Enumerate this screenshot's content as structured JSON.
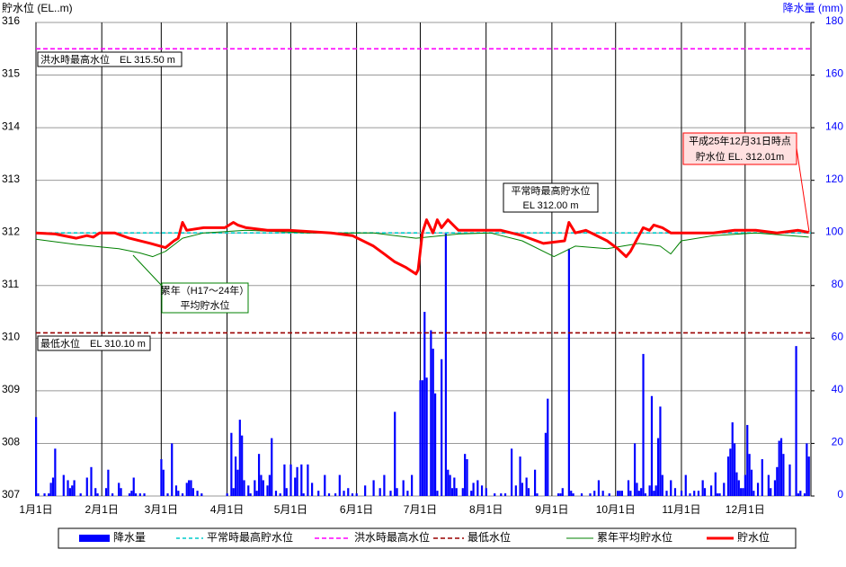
{
  "chart_data": {
    "type": "bar_line",
    "y_label": "貯水位 (EL..m)",
    "y2_label": "降水量 (mm)",
    "xlim": [
      1,
      366
    ],
    "xticks": [
      {
        "value": 1,
        "label": "1月1日"
      },
      {
        "value": 32,
        "label": "2月1日"
      },
      {
        "value": 60,
        "label": "3月1日"
      },
      {
        "value": 91,
        "label": "4月1日"
      },
      {
        "value": 121,
        "label": "5月1日"
      },
      {
        "value": 152,
        "label": "6月1日"
      },
      {
        "value": 182,
        "label": "7月1日"
      },
      {
        "value": 213,
        "label": "8月1日"
      },
      {
        "value": 244,
        "label": "9月1日"
      },
      {
        "value": 274,
        "label": "10月1日"
      },
      {
        "value": 305,
        "label": "11月1日"
      },
      {
        "value": 335,
        "label": "12月1日"
      }
    ],
    "ylim": [
      307,
      316
    ],
    "yticks": [
      307,
      308,
      309,
      310,
      311,
      312,
      313,
      314,
      315,
      316
    ],
    "y2lim": [
      0,
      180
    ],
    "y2ticks": [
      0,
      20,
      40,
      60,
      80,
      100,
      120,
      140,
      160,
      180
    ],
    "grid": true,
    "series": [
      {
        "name": "降水量",
        "type": "bar",
        "axis": "y2",
        "color": "#0000ff",
        "x": [
          1,
          2,
          5,
          7,
          8,
          9,
          10,
          14,
          16,
          17,
          18,
          19,
          22,
          25,
          27,
          29,
          30,
          34,
          35,
          37,
          40,
          41,
          45,
          46,
          47,
          48,
          50,
          52,
          60,
          61,
          63,
          65,
          67,
          68,
          70,
          72,
          73,
          74,
          75,
          77,
          79,
          91,
          93,
          94,
          95,
          96,
          97,
          98,
          99,
          101,
          102,
          104,
          105,
          106,
          107,
          108,
          110,
          111,
          112,
          114,
          116,
          118,
          119,
          121,
          123,
          124,
          126,
          127,
          129,
          131,
          134,
          137,
          139,
          142,
          144,
          146,
          148,
          150,
          152,
          156,
          160,
          163,
          165,
          168,
          170,
          171,
          174,
          176,
          178,
          182,
          183,
          184,
          185,
          187,
          188,
          189,
          190,
          192,
          194,
          195,
          196,
          197,
          198,
          199,
          202,
          203,
          204,
          206,
          207,
          209,
          211,
          213,
          217,
          220,
          222,
          225,
          227,
          229,
          230,
          232,
          233,
          236,
          237,
          241,
          242,
          247,
          248,
          249,
          252,
          253,
          254,
          258,
          262,
          264,
          266,
          268,
          271,
          275,
          276,
          277,
          280,
          281,
          283,
          284,
          285,
          286,
          287,
          288,
          290,
          291,
          292,
          293,
          294,
          295,
          296,
          298,
          300,
          302,
          305,
          307,
          309,
          311,
          313,
          315,
          316,
          319,
          321,
          322,
          323,
          325,
          327,
          328,
          329,
          330,
          331,
          332,
          333,
          334,
          335,
          336,
          337,
          338,
          339,
          341,
          343,
          346,
          347,
          349,
          350,
          351,
          352,
          353,
          356,
          359,
          360,
          361,
          363,
          364,
          365
        ],
        "values": [
          30,
          1,
          1,
          1,
          5,
          7,
          18,
          8,
          6,
          3,
          4,
          6,
          1,
          7,
          11,
          3,
          1,
          3,
          10,
          1,
          5,
          3,
          1,
          2,
          7,
          1,
          1,
          1,
          14,
          10,
          1,
          20,
          4,
          2,
          1,
          5,
          6,
          6,
          3,
          2,
          1,
          1,
          24,
          3,
          15,
          10,
          29,
          23,
          6,
          4,
          1,
          6,
          2,
          16,
          8,
          6,
          4,
          8,
          22,
          2,
          1,
          12,
          3,
          12,
          7,
          11,
          12,
          1,
          12,
          5,
          2,
          8,
          1,
          1,
          8,
          2,
          3,
          1,
          1,
          4,
          6,
          3,
          8,
          2,
          32,
          3,
          6,
          2,
          8,
          44,
          44,
          70,
          45,
          63,
          56,
          39,
          2,
          52,
          100,
          10,
          8,
          3,
          7,
          3,
          3,
          16,
          14,
          2,
          5,
          6,
          4,
          3,
          1,
          1,
          1,
          18,
          4,
          15,
          5,
          7,
          3,
          10,
          1,
          24,
          37,
          1,
          1,
          3,
          94,
          2,
          1,
          1,
          1,
          2,
          6,
          2,
          1,
          2,
          2,
          2,
          6,
          2,
          20,
          5,
          2,
          3,
          54,
          1,
          4,
          38,
          2,
          4,
          22,
          34,
          8,
          2,
          6,
          3,
          2,
          8,
          1,
          2,
          2,
          6,
          3,
          4,
          9,
          1,
          1,
          5,
          15,
          18,
          28,
          20,
          9,
          6,
          3,
          3,
          8,
          27,
          16,
          10,
          2,
          5,
          14,
          8,
          3,
          6,
          11,
          21,
          22,
          16,
          12,
          57,
          1,
          2,
          1,
          20,
          15
        ]
      },
      {
        "name": "平常時最高貯水位",
        "type": "hline",
        "value": 312,
        "color": "#00cccc",
        "dash": "4 3",
        "label": [
          "平常時最高貯水位",
          "EL 312.00 m"
        ]
      },
      {
        "name": "洪水時最高水位",
        "type": "hline",
        "value": 315.5,
        "color": "#ff00ff",
        "dash": "5 3",
        "label": [
          "洪水時最高水位　EL 315.50 m"
        ]
      },
      {
        "name": "最低水位",
        "type": "hline",
        "value": 310.1,
        "color": "#990000",
        "dash": "5 3",
        "label": [
          "最低水位　EL 310.10 m"
        ]
      },
      {
        "name": "累年平均貯水位",
        "type": "line",
        "color": "#008000",
        "width": 1,
        "x": [
          1,
          20,
          40,
          50,
          56,
          62,
          70,
          80,
          100,
          130,
          160,
          180,
          200,
          215,
          230,
          245,
          255,
          270,
          285,
          295,
          300,
          305,
          320,
          340,
          365
        ],
        "values": [
          311.88,
          311.78,
          311.7,
          311.62,
          311.55,
          311.65,
          311.9,
          312.0,
          312.05,
          312.0,
          312.0,
          311.9,
          311.98,
          312.0,
          311.85,
          311.55,
          311.75,
          311.7,
          311.8,
          311.75,
          311.6,
          311.85,
          311.95,
          312.0,
          311.92
        ],
        "label": [
          "累年（H17～24年）",
          "平均貯水位"
        ]
      },
      {
        "name": "貯水位",
        "type": "line",
        "color": "#ff0000",
        "width": 3,
        "x": [
          1,
          10,
          20,
          25,
          28,
          31,
          38,
          45,
          55,
          62,
          66,
          68,
          70,
          72,
          80,
          90,
          94,
          96,
          100,
          110,
          120,
          140,
          150,
          160,
          165,
          170,
          175,
          180,
          181,
          183,
          185,
          188,
          190,
          192,
          195,
          200,
          210,
          220,
          230,
          240,
          250,
          252,
          255,
          260,
          270,
          275,
          279,
          281,
          283,
          287,
          290,
          292,
          296,
          300,
          310,
          320,
          330,
          340,
          350,
          360,
          365
        ],
        "values": [
          312.0,
          311.98,
          311.9,
          311.95,
          311.92,
          312.0,
          312.0,
          311.9,
          311.8,
          311.72,
          311.85,
          311.9,
          312.2,
          312.05,
          312.1,
          312.1,
          312.2,
          312.15,
          312.1,
          312.05,
          312.05,
          312.0,
          311.95,
          311.75,
          311.6,
          311.45,
          311.35,
          311.22,
          311.3,
          312.0,
          312.25,
          312.0,
          312.25,
          312.1,
          312.25,
          312.05,
          312.05,
          312.05,
          311.95,
          311.8,
          311.85,
          312.2,
          312.0,
          312.05,
          311.85,
          311.7,
          311.55,
          311.65,
          311.8,
          312.1,
          312.05,
          312.15,
          312.1,
          312.0,
          312.0,
          312.0,
          312.05,
          312.05,
          312.0,
          312.05,
          312.01
        ],
        "label": [
          "平成25年12月31日時点",
          "貯水位 EL. 312.01m"
        ]
      }
    ]
  }
}
